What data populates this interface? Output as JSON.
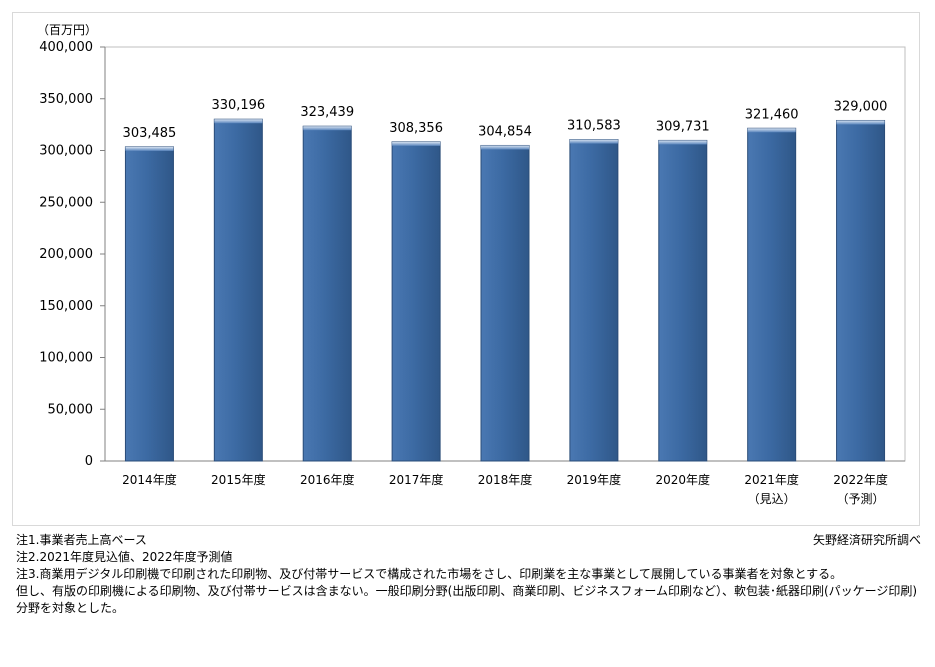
{
  "chart_data": {
    "type": "bar",
    "unit_label": "（百万円）",
    "categories": [
      [
        "2014年度"
      ],
      [
        "2015年度"
      ],
      [
        "2016年度"
      ],
      [
        "2017年度"
      ],
      [
        "2018年度"
      ],
      [
        "2019年度"
      ],
      [
        "2020年度"
      ],
      [
        "2021年度",
        "（見込）"
      ],
      [
        "2022年度",
        "（予測）"
      ]
    ],
    "values": [
      303485,
      330196,
      323439,
      308356,
      304854,
      310583,
      309731,
      321460,
      329000
    ],
    "value_labels": [
      "303,485",
      "330,196",
      "323,439",
      "308,356",
      "304,854",
      "310,583",
      "309,731",
      "321,460",
      "329,000"
    ],
    "ylim": [
      0,
      400000
    ],
    "yticks": [
      0,
      50000,
      100000,
      150000,
      200000,
      250000,
      300000,
      350000,
      400000
    ],
    "ytick_labels": [
      "0",
      "50,000",
      "100,000",
      "150,000",
      "200,000",
      "250,000",
      "300,000",
      "350,000",
      "400,000"
    ],
    "bar_color": "#3c6aa3",
    "bar_edge_color": "#2a4c78",
    "grid": false,
    "legend": "none"
  },
  "notes": [
    "注1.事業者売上高ベース",
    "注2.2021年度見込値、2022年度予測値",
    "注3.商業用デジタル印刷機で印刷された印刷物、及び付帯サービスで構成された市場をさし、印刷業を主な事業として展開している事業者を対象とする。",
    "但し、有版の印刷機による印刷物、及び付帯サービスは含まない。一般印刷分野(出版印刷、商業印刷、ビジネスフォーム印刷など）、軟包装･紙器印刷(パッケージ印刷)分野を対象とした。"
  ],
  "source": "矢野経済研究所調べ"
}
